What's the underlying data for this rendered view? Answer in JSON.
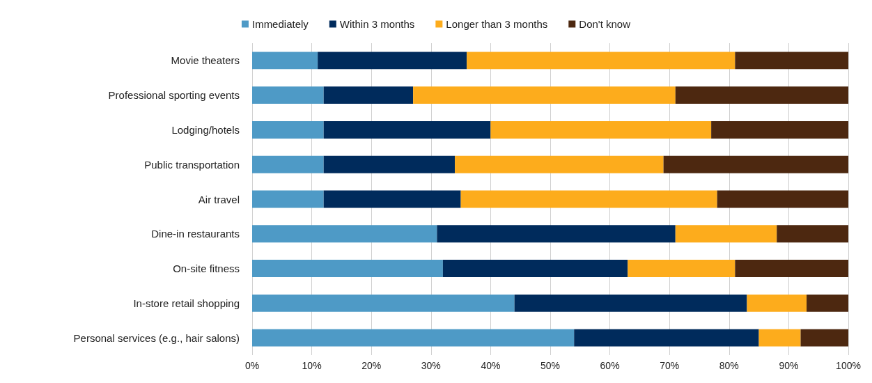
{
  "chart_data": {
    "type": "bar",
    "orientation": "horizontal",
    "stacked": true,
    "legend": "top",
    "grid": "x",
    "categories": [
      "Movie theaters",
      "Professional sporting events",
      "Lodging/hotels",
      "Public transportation",
      "Air travel",
      "Dine-in restaurants",
      "On-site fitness",
      "In-store retail shopping",
      "Personal services (e.g., hair salons)"
    ],
    "series": [
      {
        "name": "Immediately",
        "color": "#4e9ac6",
        "values": [
          11,
          12,
          12,
          12,
          12,
          31,
          32,
          44,
          54
        ]
      },
      {
        "name": "Within 3 months",
        "color": "#002b5c",
        "values": [
          25,
          15,
          28,
          22,
          23,
          40,
          31,
          39,
          31
        ]
      },
      {
        "name": "Longer than 3 months",
        "color": "#fdac1c",
        "values": [
          45,
          44,
          37,
          35,
          43,
          17,
          18,
          10,
          7
        ]
      },
      {
        "name": "Don't know",
        "color": "#4d2810",
        "values": [
          19,
          29,
          23,
          31,
          22,
          12,
          19,
          7,
          8
        ]
      }
    ],
    "xlim": [
      0,
      100
    ],
    "xticks": [
      {
        "value": 0,
        "label": "0%"
      },
      {
        "value": 10,
        "label": "10%"
      },
      {
        "value": 20,
        "label": "20%"
      },
      {
        "value": 30,
        "label": "30%"
      },
      {
        "value": 40,
        "label": "40%"
      },
      {
        "value": 50,
        "label": "50%"
      },
      {
        "value": 60,
        "label": "60%"
      },
      {
        "value": 70,
        "label": "70%"
      },
      {
        "value": 80,
        "label": "80%"
      },
      {
        "value": 90,
        "label": "90%"
      },
      {
        "value": 100,
        "label": "100%"
      }
    ]
  }
}
